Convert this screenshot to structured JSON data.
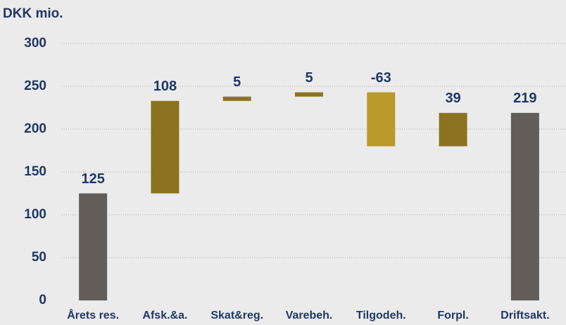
{
  "chart_data": {
    "type": "waterfall",
    "title": "DKK mio.",
    "categories": [
      "Årets res.",
      "Afsk.&a.",
      "Skat&reg.",
      "Varebeh.",
      "Tilgodeh.",
      "Forpl.",
      "Driftsakt."
    ],
    "values": [
      125,
      108,
      5,
      5,
      -63,
      39,
      219
    ],
    "is_total": [
      true,
      false,
      false,
      false,
      false,
      false,
      true
    ],
    "colors": [
      "#625d58",
      "#8b7320",
      "#8b7320",
      "#8b7320",
      "#b89a2a",
      "#8b7320",
      "#625d58"
    ],
    "ylim": [
      0,
      300
    ],
    "yticks": [
      0,
      50,
      100,
      150,
      200,
      250,
      300
    ],
    "grid": true
  }
}
